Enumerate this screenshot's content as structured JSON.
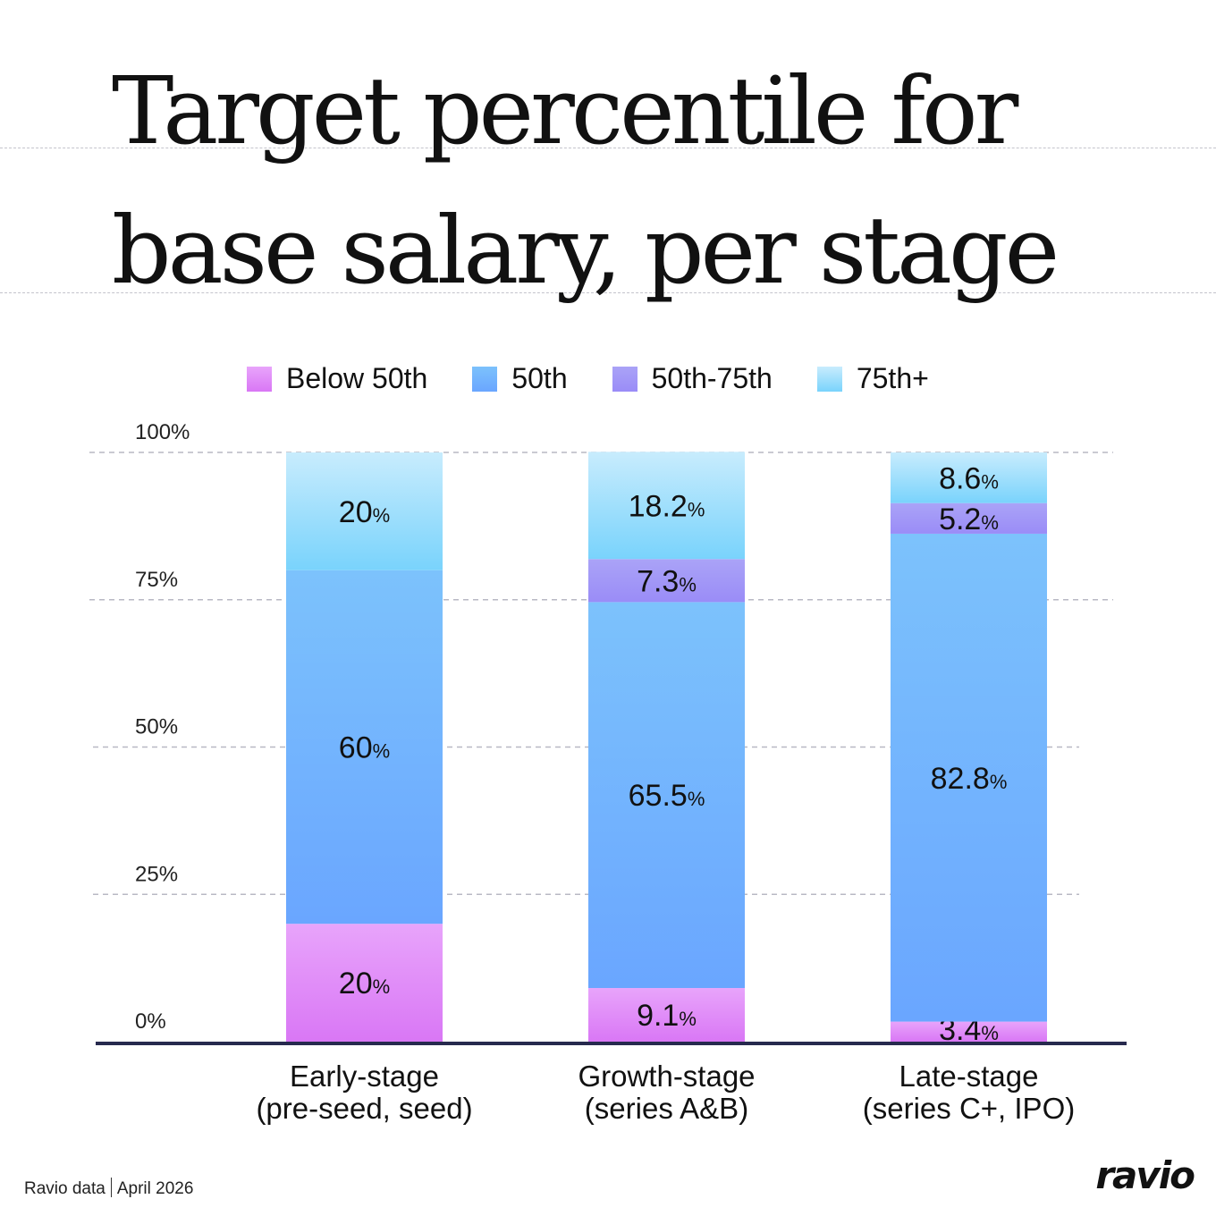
{
  "title_lines": [
    "Target percentile for",
    "base salary, per stage"
  ],
  "footer": {
    "source": "Ravio data",
    "date": "April 2026"
  },
  "logo": "ravio",
  "chart_data": {
    "type": "bar",
    "stacked": true,
    "categories": [
      [
        "Early-stage",
        "(pre-seed, seed)"
      ],
      [
        "Growth-stage",
        "(series A&B)"
      ],
      [
        "Late-stage",
        "(series C+, IPO)"
      ]
    ],
    "series": [
      {
        "name": "Below 50th",
        "values": [
          20,
          9.1,
          3.4
        ],
        "color": "#d977f5",
        "color_light": "#e8a4fb"
      },
      {
        "name": "50th",
        "values": [
          60,
          65.5,
          82.8
        ],
        "color": "#6aa6ff",
        "color_light": "#7cc2fc"
      },
      {
        "name": "50th-75th",
        "values": [
          0,
          7.3,
          5.2
        ],
        "color": "#9a8cf7",
        "color_light": "#aaa3f7"
      },
      {
        "name": "75th+",
        "values": [
          20,
          18.2,
          8.6
        ],
        "color": "#79d3fc",
        "color_light": "#c8ecfd"
      }
    ],
    "yticks": [
      "0%",
      "25%",
      "50%",
      "75%",
      "100%"
    ],
    "ylim": [
      0,
      100
    ],
    "grid": true,
    "legend": "top",
    "axis_color": "#272a4e"
  }
}
